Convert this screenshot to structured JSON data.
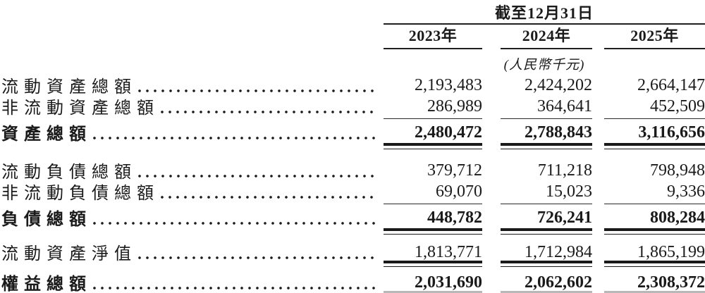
{
  "document": {
    "period_header": "截至12月31日",
    "unit_note": "(人民幣千元)",
    "columns": [
      "2023年",
      "2024年",
      "2025年"
    ],
    "rows": [
      {
        "label": "流動資產總額",
        "values": [
          "2,193,483",
          "2,424,202",
          "2,664,147"
        ],
        "emphasis": false
      },
      {
        "label": "非流動資產總額",
        "values": [
          "286,989",
          "364,641",
          "452,509"
        ],
        "emphasis": false
      },
      {
        "label": "資產總額",
        "values": [
          "2,480,472",
          "2,788,843",
          "3,116,656"
        ],
        "emphasis": true
      },
      {
        "label": "流動負債總額",
        "values": [
          "379,712",
          "711,218",
          "798,948"
        ],
        "emphasis": false
      },
      {
        "label": "非流動負債總額",
        "values": [
          "69,070",
          "15,023",
          "9,336"
        ],
        "emphasis": false
      },
      {
        "label": "負債總額",
        "values": [
          "448,782",
          "726,241",
          "808,284"
        ],
        "emphasis": true
      },
      {
        "label": "流動資產淨值",
        "values": [
          "1,813,771",
          "1,712,984",
          "1,865,199"
        ],
        "emphasis": false
      },
      {
        "label": "權益總額",
        "values": [
          "2,031,690",
          "2,062,602",
          "2,308,372"
        ],
        "emphasis": true
      }
    ],
    "colors": {
      "text": "#1a1a1a",
      "rule": "#1f1f1f",
      "bottom_rule": "#b8b8b8"
    }
  }
}
